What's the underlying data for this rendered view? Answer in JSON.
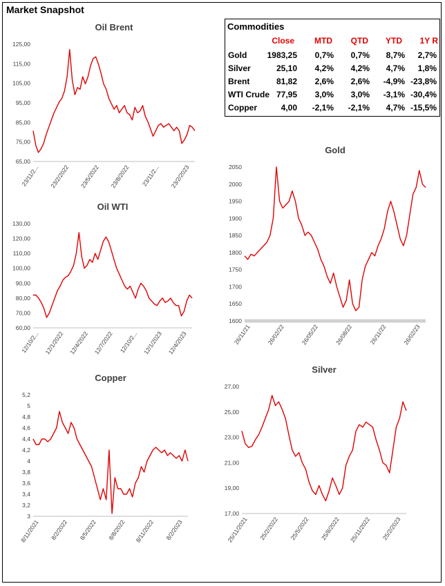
{
  "page_title": "Market Snapshot",
  "line_color": "#e00000",
  "table": {
    "title": "Commodities",
    "headers": [
      "Close",
      "MTD",
      "QTD",
      "YTD",
      "1Y R"
    ],
    "header_color": "#e60000",
    "rows": [
      {
        "name": "Gold",
        "values": [
          "1983,25",
          "0,7%",
          "0,7%",
          "8,7%",
          "2,7%"
        ]
      },
      {
        "name": "Silver",
        "values": [
          "25,10",
          "4,2%",
          "4,2%",
          "4,7%",
          "1,8%"
        ]
      },
      {
        "name": "Brent",
        "values": [
          "81,82",
          "2,6%",
          "2,6%",
          "-4,9%",
          "-23,8%"
        ]
      },
      {
        "name": "WTI Crude",
        "values": [
          "77,95",
          "3,0%",
          "3,0%",
          "-3,1%",
          "-30,4%"
        ]
      },
      {
        "name": "Copper",
        "values": [
          "4,00",
          "-2,1%",
          "-2,1%",
          "4,7%",
          "-15,5%"
        ]
      }
    ]
  },
  "chart_data": [
    {
      "id": "brent",
      "type": "line",
      "title": "Oil Brent",
      "ylim": [
        65,
        130
      ],
      "yticks": [
        "65,00",
        "75,00",
        "85,00",
        "95,00",
        "105,00",
        "115,00",
        "125,00"
      ],
      "xticks": [
        "23/11/2...",
        "23/2/2022",
        "23/5/2022",
        "23/8/2022",
        "23/11/2...",
        "23/2/2023"
      ],
      "series": [
        {
          "values": [
            82,
            74,
            70,
            72,
            75,
            80,
            84,
            88,
            92,
            95,
            98,
            100,
            104,
            112,
            127,
            110,
            102,
            106,
            105,
            112,
            108,
            112,
            118,
            122,
            123,
            119,
            114,
            108,
            105,
            100,
            97,
            94,
            96,
            92,
            94,
            96,
            92,
            91,
            88,
            95,
            92,
            93,
            96,
            90,
            87,
            83,
            79,
            82,
            85,
            86,
            84,
            85,
            86,
            84,
            82,
            84,
            82,
            75,
            77,
            80,
            85,
            84,
            82
          ]
        }
      ],
      "grid": false
    },
    {
      "id": "wti",
      "type": "line",
      "title": "Oil WTI",
      "ylim": [
        60,
        130
      ],
      "yticks": [
        "60,00",
        "70,00",
        "80,00",
        "90,00",
        "100,00",
        "110,00",
        "120,00",
        "130,00"
      ],
      "xticks": [
        "12/10/2...",
        "12/1/2022",
        "12/4/2022",
        "12/7/2022",
        "12/10/2...",
        "12/1/2023",
        "12/4/2023"
      ],
      "series": [
        {
          "values": [
            82,
            82,
            80,
            77,
            73,
            67,
            70,
            75,
            80,
            85,
            88,
            92,
            94,
            95,
            98,
            102,
            110,
            124,
            108,
            100,
            102,
            106,
            104,
            110,
            106,
            112,
            118,
            121,
            118,
            112,
            106,
            100,
            96,
            92,
            88,
            86,
            88,
            84,
            80,
            86,
            90,
            88,
            85,
            80,
            78,
            76,
            75,
            78,
            80,
            77,
            78,
            80,
            77,
            75,
            75,
            68,
            71,
            78,
            82,
            80
          ]
        }
      ],
      "grid": false
    },
    {
      "id": "gold",
      "type": "line",
      "title": "Gold",
      "ylim": [
        1600,
        2050
      ],
      "yticks": [
        "1600",
        "1650",
        "1700",
        "1750",
        "1800",
        "1850",
        "1900",
        "1950",
        "2000",
        "2050"
      ],
      "xticks": [
        "26/11/21",
        "26/02/22",
        "26/05/22",
        "26/08/22",
        "26/11/22",
        "26/02/23"
      ],
      "series": [
        {
          "values": [
            1790,
            1780,
            1795,
            1790,
            1800,
            1810,
            1820,
            1830,
            1850,
            1900,
            2050,
            1950,
            1930,
            1940,
            1950,
            1980,
            1950,
            1900,
            1880,
            1850,
            1860,
            1850,
            1830,
            1810,
            1780,
            1760,
            1730,
            1710,
            1740,
            1700,
            1670,
            1640,
            1660,
            1720,
            1650,
            1630,
            1640,
            1720,
            1760,
            1780,
            1800,
            1790,
            1820,
            1840,
            1870,
            1920,
            1950,
            1920,
            1880,
            1840,
            1820,
            1850,
            1910,
            1970,
            1990,
            2040,
            2000,
            1990
          ]
        }
      ],
      "grid": false
    },
    {
      "id": "copper",
      "type": "line",
      "title": "Copper",
      "ylim": [
        3,
        5.2
      ],
      "yticks": [
        "3",
        "3,2",
        "3,4",
        "3,6",
        "3,8",
        "4",
        "4,2",
        "4,4",
        "4,6",
        "4,8",
        "5",
        "5,2"
      ],
      "xticks": [
        "8/11/2021",
        "8/2/2022",
        "8/5/2022",
        "8/8/2022",
        "8/11/2022",
        "8/2/2023"
      ],
      "series": [
        {
          "values": [
            4.4,
            4.3,
            4.3,
            4.4,
            4.4,
            4.35,
            4.4,
            4.5,
            4.6,
            4.9,
            4.7,
            4.6,
            4.5,
            4.7,
            4.6,
            4.4,
            4.3,
            4.2,
            4.1,
            4.0,
            3.9,
            3.7,
            3.5,
            3.3,
            3.5,
            3.3,
            4.2,
            3.05,
            3.7,
            3.5,
            3.5,
            3.4,
            3.4,
            3.5,
            3.35,
            3.6,
            3.7,
            3.9,
            3.8,
            4.0,
            4.1,
            4.2,
            4.25,
            4.2,
            4.15,
            4.2,
            4.1,
            4.15,
            4.1,
            4.05,
            4.1,
            4.0,
            4.2,
            4.0
          ]
        }
      ],
      "grid": false
    },
    {
      "id": "silver",
      "type": "line",
      "title": "Silver",
      "ylim": [
        17,
        27
      ],
      "yticks": [
        "17,00",
        "19,00",
        "21,00",
        "23,00",
        "25,00",
        "27,00"
      ],
      "xticks": [
        "25/11/2021",
        "25/2/2022",
        "25/5/2022",
        "25/8/2022",
        "25/11/2022",
        "25/2/2023"
      ],
      "series": [
        {
          "values": [
            23.5,
            22.5,
            22.2,
            22.3,
            22.8,
            23.2,
            23.8,
            24.5,
            25.2,
            26.3,
            25.5,
            25.8,
            25.2,
            24.5,
            23.2,
            22.0,
            21.5,
            21.8,
            21.0,
            20.5,
            19.5,
            18.8,
            18.5,
            19.2,
            18.5,
            18.0,
            18.8,
            19.8,
            19.2,
            18.5,
            19.0,
            20.8,
            21.5,
            22.0,
            23.5,
            24.0,
            23.8,
            24.2,
            24.0,
            23.8,
            22.8,
            22.0,
            21.0,
            20.8,
            20.2,
            22.0,
            23.8,
            24.5,
            25.8,
            25.1
          ]
        }
      ],
      "grid": false
    }
  ]
}
